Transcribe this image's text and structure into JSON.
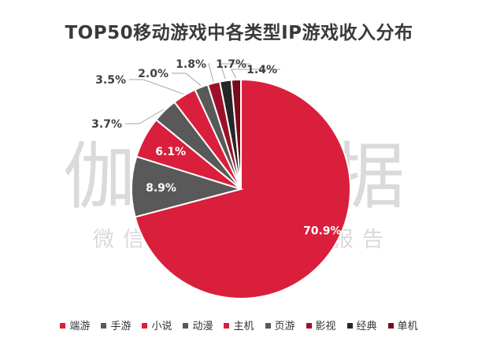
{
  "watermark": {
    "main": "伽马数据",
    "sub": "微信号：游戏产业报告"
  },
  "chart_data": {
    "type": "pie",
    "title": "TOP50移动游戏中各类型IP游戏收入分布",
    "legend_position": "bottom",
    "slices": [
      {
        "name": "端游",
        "value": 70.9,
        "label": "70.9%",
        "color": "#d91f3b"
      },
      {
        "name": "手游",
        "value": 8.9,
        "label": "8.9%",
        "color": "#595959"
      },
      {
        "name": "小说",
        "value": 6.1,
        "label": "6.1%",
        "color": "#d91f3b"
      },
      {
        "name": "动漫",
        "value": 3.7,
        "label": "3.7%",
        "color": "#595959"
      },
      {
        "name": "主机",
        "value": 3.5,
        "label": "3.5%",
        "color": "#d91f3b"
      },
      {
        "name": "页游",
        "value": 2.0,
        "label": "2.0%",
        "color": "#595959"
      },
      {
        "name": "影视",
        "value": 1.8,
        "label": "1.8%",
        "color": "#9c1029"
      },
      {
        "name": "经典",
        "value": 1.7,
        "label": "1.7%",
        "color": "#262626"
      },
      {
        "name": "单机",
        "value": 1.4,
        "label": "1.4%",
        "color": "#7a0a1c"
      }
    ]
  }
}
